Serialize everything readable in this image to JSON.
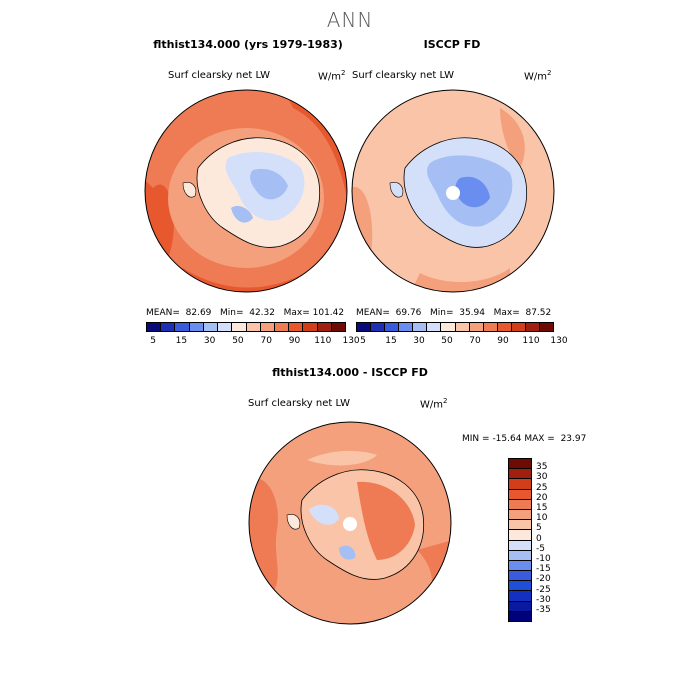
{
  "figure": {
    "title": "ANN"
  },
  "panels": {
    "model": {
      "title": "flthist134.000 (yrs 1979-1983)",
      "variable": "Surf clearsky net LW",
      "units_base": "W/m",
      "units_exp": "2",
      "stats": {
        "mean_label": "MEAN=",
        "mean_value": "82.69",
        "min_label": "Min=",
        "min_value": "42.32",
        "max_label": "Max=",
        "max_value": "101.42"
      }
    },
    "obs": {
      "title": "ISCCP FD",
      "variable": "Surf clearsky net LW",
      "units_base": "W/m",
      "units_exp": "2",
      "stats": {
        "mean_label": "MEAN=",
        "mean_value": "69.76",
        "min_label": "Min=",
        "min_value": "35.94",
        "max_label": "Max=",
        "max_value": "87.52"
      }
    },
    "diff": {
      "title": "flthist134.000 - ISCCP FD",
      "variable": "Surf clearsky net LW",
      "units_base": "W/m",
      "units_exp": "2",
      "stats": {
        "min_label": "MIN =",
        "min_value": "-15.64",
        "max_label": "MAX =",
        "max_value": "23.97"
      }
    }
  },
  "colorbars": {
    "abs": {
      "colors": [
        "#0a0a7a",
        "#1f2fb5",
        "#3a5bdc",
        "#6a8ef0",
        "#a5bff5",
        "#d4e0fa",
        "#fde9dc",
        "#f9c4a8",
        "#f4a07c",
        "#ef7b55",
        "#e8582f",
        "#d23d1a",
        "#a01f0f",
        "#6e0b05"
      ],
      "ticks": [
        "5",
        "15",
        "30",
        "50",
        "70",
        "90",
        "110",
        "130"
      ]
    },
    "diff": {
      "colors": [
        "#6e0b05",
        "#a01f0f",
        "#d23d1a",
        "#e8582f",
        "#ef7b55",
        "#f4a07c",
        "#f9c4a8",
        "#fde9dc",
        "#d4e0fa",
        "#a5bff5",
        "#6a8ef0",
        "#3a5bdc",
        "#1f4fd8",
        "#1430c0",
        "#0a1aa0",
        "#00007a"
      ],
      "ticks": [
        "35",
        "30",
        "25",
        "20",
        "15",
        "10",
        "5",
        "0",
        "-5",
        "-10",
        "-15",
        "-20",
        "-25",
        "-30",
        "-35"
      ]
    }
  }
}
